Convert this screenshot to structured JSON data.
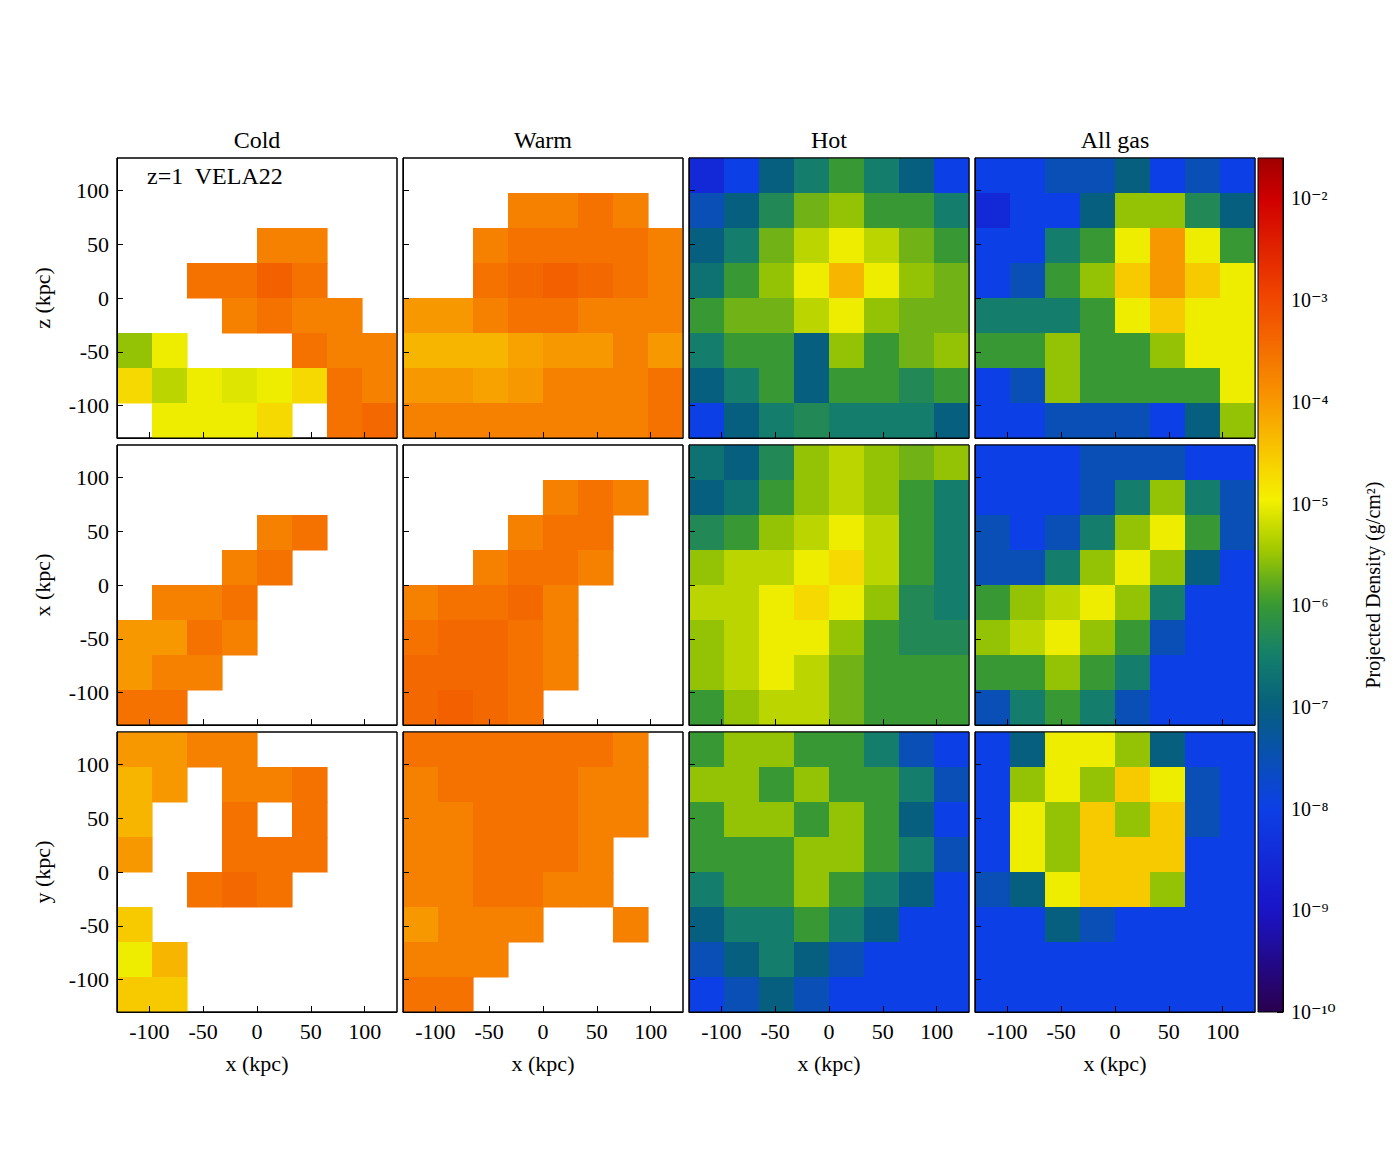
{
  "chart_data": {
    "type": "heatmap",
    "annotation": "z=1  VELA22",
    "columns": [
      "Cold",
      "Warm",
      "Hot",
      "All gas"
    ],
    "row_labels": [
      "z (kpc)",
      "x (kpc)",
      "y (kpc)"
    ],
    "x_label": "x (kpc)",
    "xlim": [
      -130,
      130
    ],
    "xticks": [
      -100,
      -50,
      0,
      50,
      100
    ],
    "ylim": [
      -130,
      130
    ],
    "yticks": [
      -100,
      -50,
      0,
      50,
      100
    ],
    "log": true,
    "x_edges": [
      -130,
      -97.5,
      -65,
      -32.5,
      0,
      32.5,
      65,
      97.5,
      130
    ],
    "y_edges": [
      130,
      97.5,
      65,
      32.5,
      0,
      -32.5,
      -65,
      -97.5,
      -130
    ],
    "colorbar": {
      "label": "Projected Density (g/cm²)",
      "range": [
        1e-10,
        0.025
      ],
      "ticks": [
        {
          "value": 0.01,
          "label": "10⁻²"
        },
        {
          "value": 0.001,
          "label": "10⁻³"
        },
        {
          "value": 0.0001,
          "label": "10⁻⁴"
        },
        {
          "value": 1e-05,
          "label": "10⁻⁵"
        },
        {
          "value": 1e-06,
          "label": "10⁻⁶"
        },
        {
          "value": 1e-07,
          "label": "10⁻⁷"
        },
        {
          "value": 1e-08,
          "label": "10⁻⁸"
        },
        {
          "value": 1e-09,
          "label": "10⁻⁹"
        },
        {
          "value": 1e-10,
          "label": "10⁻¹⁰"
        }
      ]
    },
    "cells": [
      [
        [
          [
            null,
            null,
            null,
            null,
            null,
            null,
            null,
            null
          ],
          [
            null,
            null,
            null,
            null,
            null,
            null,
            null,
            null
          ],
          [
            null,
            null,
            null,
            null,
            0.0002,
            0.0002,
            null,
            null
          ],
          [
            null,
            null,
            0.0003,
            0.0003,
            0.0005,
            0.0003,
            null,
            null
          ],
          [
            null,
            null,
            null,
            0.0002,
            0.0003,
            0.0002,
            0.0002,
            null
          ],
          [
            3e-06,
            1e-05,
            null,
            null,
            null,
            0.0003,
            0.0002,
            0.0002
          ],
          [
            2e-05,
            5e-06,
            1e-05,
            8e-06,
            1e-05,
            2e-05,
            0.0003,
            0.0002
          ],
          [
            null,
            1e-05,
            1e-05,
            1e-05,
            2e-05,
            null,
            0.0003,
            0.0004
          ]
        ],
        [
          [
            null,
            null,
            null,
            null,
            null,
            null,
            null,
            null
          ],
          [
            null,
            null,
            null,
            0.0002,
            0.0002,
            0.0003,
            0.0002,
            null
          ],
          [
            null,
            null,
            0.0002,
            0.0003,
            0.0003,
            0.0003,
            0.0003,
            0.0002
          ],
          [
            null,
            null,
            0.0003,
            0.0004,
            0.0005,
            0.0004,
            0.0003,
            0.0002
          ],
          [
            0.0001,
            0.0001,
            0.0002,
            0.0003,
            0.0003,
            0.0002,
            0.0002,
            0.0002
          ],
          [
            5e-05,
            5e-05,
            5e-05,
            8e-05,
            0.0001,
            0.0001,
            0.0002,
            0.0001
          ],
          [
            0.0001,
            0.0001,
            8e-05,
            0.0001,
            0.0002,
            0.0002,
            0.0002,
            0.0003
          ],
          [
            0.0002,
            0.0002,
            0.0002,
            0.0002,
            0.0002,
            0.0002,
            0.0002,
            0.0003
          ]
        ],
        [
          [
            3e-09,
            1e-08,
            1e-07,
            3e-07,
            1e-06,
            3e-07,
            1e-07,
            1e-08
          ],
          [
            3e-08,
            1e-07,
            5e-07,
            2e-06,
            3e-06,
            1e-06,
            1e-06,
            3e-07
          ],
          [
            1e-07,
            3e-07,
            2e-06,
            5e-06,
            1e-05,
            5e-06,
            2e-06,
            1e-06
          ],
          [
            2e-07,
            1e-06,
            3e-06,
            1e-05,
            5e-05,
            1e-05,
            3e-06,
            2e-06
          ],
          [
            1e-06,
            2e-06,
            2e-06,
            5e-06,
            1e-05,
            3e-06,
            2e-06,
            2e-06
          ],
          [
            3e-07,
            1e-06,
            1e-06,
            1e-07,
            3e-06,
            1e-06,
            2e-06,
            3e-06
          ],
          [
            1e-07,
            3e-07,
            1e-06,
            1e-07,
            1e-06,
            1e-06,
            5e-07,
            1e-06
          ],
          [
            1e-08,
            1e-07,
            3e-07,
            5e-07,
            3e-07,
            3e-07,
            3e-07,
            1e-07
          ]
        ],
        [
          [
            1e-08,
            1e-08,
            3e-08,
            3e-08,
            1e-07,
            1e-08,
            3e-08,
            1e-08
          ],
          [
            3e-09,
            1e-08,
            1e-08,
            1e-07,
            3e-06,
            3e-06,
            5e-07,
            1e-07
          ],
          [
            1e-08,
            1e-08,
            3e-07,
            1e-06,
            1e-05,
            0.0001,
            1e-05,
            1e-06
          ],
          [
            1e-08,
            3e-08,
            1e-06,
            3e-06,
            3e-05,
            0.0001,
            3e-05,
            1e-05
          ],
          [
            3e-07,
            3e-07,
            3e-07,
            1e-06,
            1e-05,
            3e-05,
            1e-05,
            1e-05
          ],
          [
            1e-06,
            1e-06,
            3e-06,
            1e-06,
            1e-06,
            3e-06,
            1e-05,
            1e-05
          ],
          [
            1e-08,
            3e-08,
            3e-06,
            1e-06,
            1e-06,
            1e-06,
            1e-06,
            1e-05
          ],
          [
            1e-08,
            1e-08,
            3e-08,
            3e-08,
            3e-08,
            1e-08,
            1e-07,
            3e-06
          ]
        ]
      ],
      [
        [
          [
            null,
            null,
            null,
            null,
            null,
            null,
            null,
            null
          ],
          [
            null,
            null,
            null,
            null,
            null,
            null,
            null,
            null
          ],
          [
            null,
            null,
            null,
            null,
            0.0002,
            0.0003,
            null,
            null
          ],
          [
            null,
            null,
            null,
            0.0002,
            0.0003,
            null,
            null,
            null
          ],
          [
            null,
            0.0002,
            0.0002,
            0.0003,
            null,
            null,
            null,
            null
          ],
          [
            0.0001,
            0.0001,
            0.0003,
            0.0002,
            null,
            null,
            null,
            null
          ],
          [
            0.0001,
            0.0002,
            0.0002,
            null,
            null,
            null,
            null,
            null
          ],
          [
            0.0003,
            0.0003,
            null,
            null,
            null,
            null,
            null,
            null
          ]
        ],
        [
          [
            null,
            null,
            null,
            null,
            null,
            null,
            null,
            null
          ],
          [
            null,
            null,
            null,
            null,
            0.0002,
            0.0003,
            0.0002,
            null
          ],
          [
            null,
            null,
            null,
            0.0002,
            0.0003,
            0.0003,
            null,
            null
          ],
          [
            null,
            null,
            0.0002,
            0.0003,
            0.0003,
            0.0002,
            null,
            null
          ],
          [
            0.0002,
            0.0003,
            0.0003,
            0.0004,
            0.0002,
            null,
            null,
            null
          ],
          [
            0.0003,
            0.0004,
            0.0004,
            0.0003,
            0.0002,
            null,
            null,
            null
          ],
          [
            0.0004,
            0.0004,
            0.0004,
            0.0003,
            0.0002,
            null,
            null,
            null
          ],
          [
            0.0004,
            0.0005,
            0.0004,
            0.0003,
            null,
            null,
            null,
            null
          ]
        ],
        [
          [
            2e-07,
            1e-07,
            5e-07,
            3e-06,
            5e-06,
            3e-06,
            2e-06,
            3e-06
          ],
          [
            1e-07,
            2e-07,
            1e-06,
            3e-06,
            5e-06,
            3e-06,
            1e-06,
            3e-07
          ],
          [
            5e-07,
            1e-06,
            3e-06,
            5e-06,
            1e-05,
            5e-06,
            1e-06,
            3e-07
          ],
          [
            3e-06,
            5e-06,
            5e-06,
            1e-05,
            2e-05,
            5e-06,
            1e-06,
            3e-07
          ],
          [
            5e-06,
            5e-06,
            1e-05,
            2e-05,
            1e-05,
            3e-06,
            5e-07,
            3e-07
          ],
          [
            3e-06,
            5e-06,
            1e-05,
            1e-05,
            3e-06,
            1e-06,
            5e-07,
            5e-07
          ],
          [
            3e-06,
            5e-06,
            1e-05,
            5e-06,
            2e-06,
            1e-06,
            1e-06,
            1e-06
          ],
          [
            1e-06,
            3e-06,
            5e-06,
            5e-06,
            2e-06,
            1e-06,
            1e-06,
            1e-06
          ]
        ],
        [
          [
            1e-08,
            1e-08,
            1e-08,
            3e-08,
            3e-08,
            3e-08,
            1e-08,
            1e-08
          ],
          [
            1e-08,
            1e-08,
            1e-08,
            3e-08,
            3e-07,
            3e-06,
            3e-07,
            3e-08
          ],
          [
            3e-08,
            1e-08,
            3e-08,
            3e-07,
            3e-06,
            1e-05,
            1e-06,
            3e-08
          ],
          [
            3e-08,
            3e-08,
            3e-07,
            3e-06,
            1e-05,
            3e-06,
            1e-07,
            1e-08
          ],
          [
            1e-06,
            3e-06,
            5e-06,
            1e-05,
            3e-06,
            3e-07,
            1e-08,
            1e-08
          ],
          [
            3e-06,
            5e-06,
            1e-05,
            3e-06,
            1e-06,
            3e-08,
            1e-08,
            1e-08
          ],
          [
            1e-06,
            1e-06,
            3e-06,
            1e-06,
            3e-07,
            1e-08,
            1e-08,
            1e-08
          ],
          [
            3e-08,
            3e-07,
            1e-06,
            3e-07,
            3e-08,
            1e-08,
            1e-08,
            1e-08
          ]
        ]
      ],
      [
        [
          [
            0.0001,
            0.0001,
            0.0002,
            0.0002,
            null,
            null,
            null,
            null
          ],
          [
            5e-05,
            0.0001,
            null,
            0.0002,
            0.0002,
            0.0003,
            null,
            null
          ],
          [
            5e-05,
            null,
            null,
            0.0003,
            null,
            0.0003,
            null,
            null
          ],
          [
            0.0001,
            null,
            null,
            0.0003,
            0.0003,
            0.0003,
            null,
            null
          ],
          [
            null,
            null,
            0.0003,
            0.0004,
            0.0003,
            null,
            null,
            null
          ],
          [
            3e-05,
            null,
            null,
            null,
            null,
            null,
            null,
            null
          ],
          [
            1e-05,
            5e-05,
            null,
            null,
            null,
            null,
            null,
            null
          ],
          [
            3e-05,
            3e-05,
            null,
            null,
            null,
            null,
            null,
            null
          ]
        ],
        [
          [
            0.0003,
            0.0003,
            0.0003,
            0.0003,
            0.0003,
            0.0003,
            0.0002,
            null
          ],
          [
            0.0002,
            0.0003,
            0.0003,
            0.0003,
            0.0003,
            0.0002,
            0.0002,
            null
          ],
          [
            0.0002,
            0.0002,
            0.0003,
            0.0003,
            0.0003,
            0.0002,
            0.0002,
            null
          ],
          [
            0.0002,
            0.0002,
            0.0003,
            0.0003,
            0.0003,
            0.0002,
            null,
            null
          ],
          [
            0.0002,
            0.0002,
            0.0003,
            0.0003,
            0.0002,
            0.0002,
            null,
            null
          ],
          [
            0.0001,
            0.0002,
            0.0002,
            0.0002,
            null,
            null,
            0.0002,
            null
          ],
          [
            0.0002,
            0.0002,
            0.0002,
            null,
            null,
            null,
            null,
            null
          ],
          [
            0.0003,
            0.0003,
            null,
            null,
            null,
            null,
            null,
            null
          ]
        ],
        [
          [
            1e-06,
            3e-06,
            3e-06,
            1e-06,
            1e-06,
            3e-07,
            3e-08,
            1e-08
          ],
          [
            3e-06,
            3e-06,
            1e-06,
            3e-06,
            1e-06,
            1e-06,
            3e-07,
            3e-08
          ],
          [
            1e-06,
            3e-06,
            3e-06,
            1e-06,
            3e-06,
            1e-06,
            1e-07,
            1e-08
          ],
          [
            1e-06,
            1e-06,
            1e-06,
            3e-06,
            3e-06,
            1e-06,
            3e-07,
            3e-08
          ],
          [
            3e-07,
            1e-06,
            1e-06,
            3e-06,
            1e-06,
            3e-07,
            1e-07,
            1e-08
          ],
          [
            1e-07,
            3e-07,
            3e-07,
            1e-06,
            3e-07,
            1e-07,
            1e-08,
            1e-08
          ],
          [
            3e-08,
            1e-07,
            3e-07,
            1e-07,
            3e-08,
            1e-08,
            1e-08,
            1e-08
          ],
          [
            1e-08,
            3e-08,
            1e-07,
            3e-08,
            1e-08,
            1e-08,
            1e-08,
            1e-08
          ]
        ],
        [
          [
            1e-08,
            1e-07,
            1e-05,
            1e-05,
            3e-06,
            1e-07,
            1e-08,
            1e-08
          ],
          [
            1e-08,
            3e-06,
            1e-05,
            3e-06,
            3e-05,
            1e-05,
            3e-08,
            1e-08
          ],
          [
            1e-08,
            1e-05,
            3e-06,
            3e-05,
            3e-06,
            3e-05,
            3e-08,
            1e-08
          ],
          [
            1e-08,
            1e-05,
            3e-06,
            3e-05,
            3e-05,
            3e-05,
            1e-08,
            1e-08
          ],
          [
            3e-08,
            1e-07,
            1e-05,
            3e-05,
            3e-05,
            3e-06,
            1e-08,
            1e-08
          ],
          [
            1e-08,
            1e-08,
            1e-07,
            3e-08,
            1e-08,
            1e-08,
            1e-08,
            1e-08
          ],
          [
            1e-08,
            1e-08,
            1e-08,
            1e-08,
            1e-08,
            1e-08,
            1e-08,
            1e-08
          ],
          [
            1e-08,
            1e-08,
            1e-08,
            1e-08,
            1e-08,
            1e-08,
            1e-08,
            1e-08
          ]
        ]
      ]
    ]
  }
}
